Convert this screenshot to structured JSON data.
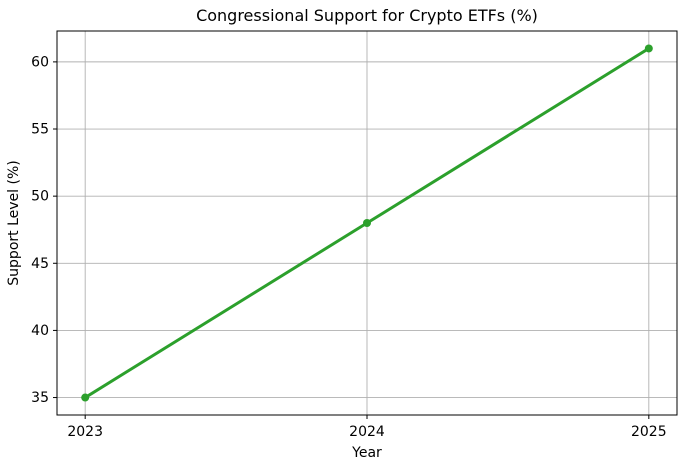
{
  "figure": {
    "background": "#ffffff"
  },
  "chart_data": {
    "type": "line",
    "title": "Congressional Support for Crypto ETFs (%)",
    "xlabel": "Year",
    "ylabel": "Support Level (%)",
    "x": [
      2023,
      2024,
      2025
    ],
    "values": [
      35,
      48,
      61
    ],
    "xticks": [
      2023,
      2024,
      2025
    ],
    "yticks": [
      35,
      40,
      45,
      50,
      55,
      60
    ],
    "xlim": [
      2022.9,
      2025.1
    ],
    "ylim": [
      33.7,
      62.3
    ],
    "grid": true,
    "legend": false,
    "marker": "circle",
    "line_color": "#2ca02c",
    "grid_color": "#b0b0b0",
    "axis_color": "#000000",
    "text_color": "#000000"
  }
}
